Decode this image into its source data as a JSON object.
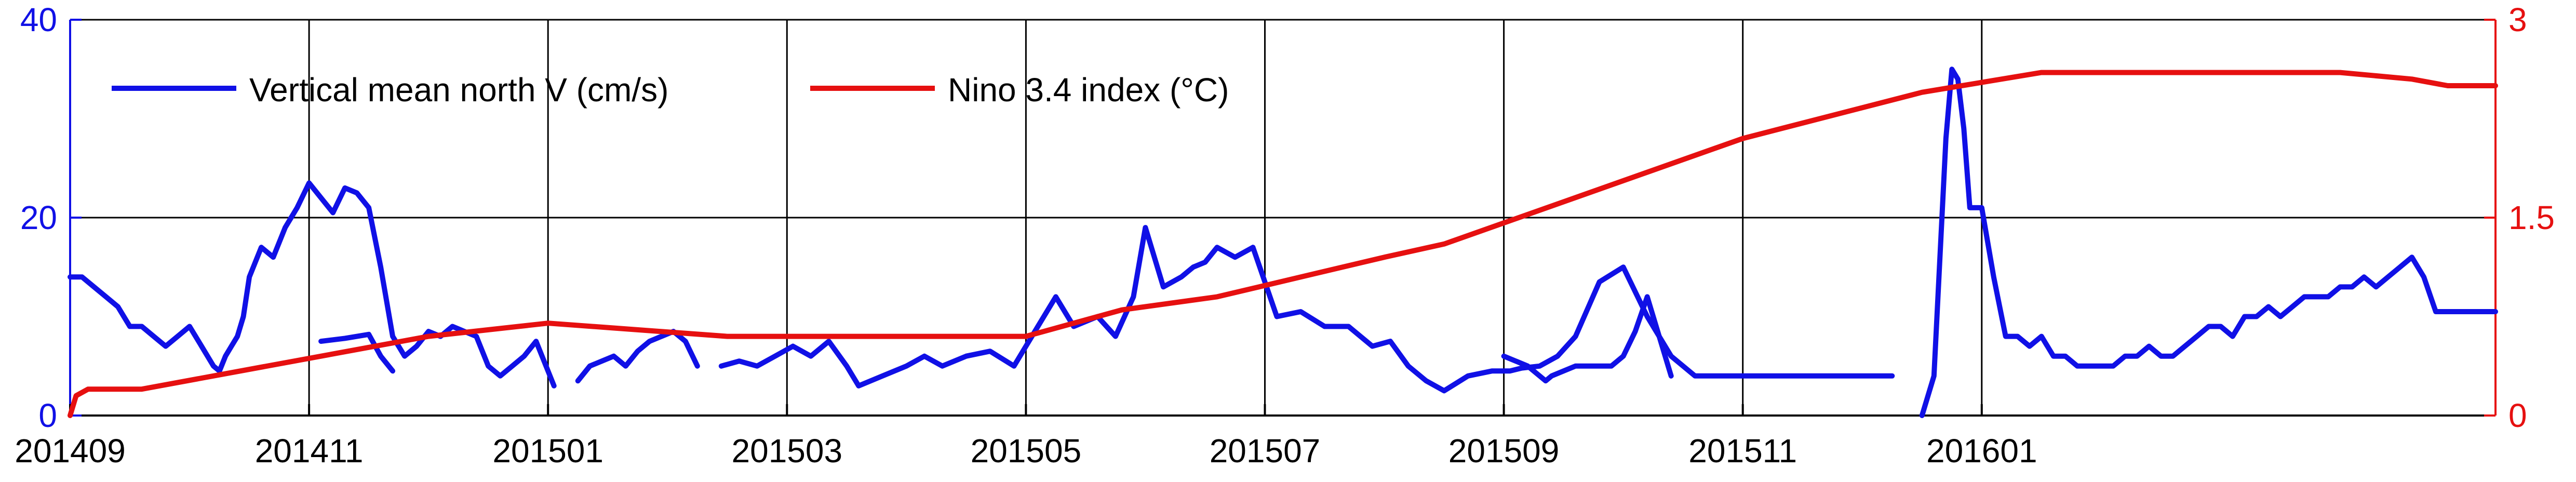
{
  "colors": {
    "series_v": "#1010e6",
    "series_nino": "#e61010",
    "axis_x": "#000000",
    "grid": "#000000"
  },
  "chart_data": {
    "type": "line",
    "x_ticks": [
      "201409",
      "201411",
      "201501",
      "201503",
      "201505",
      "201507",
      "201509",
      "201511",
      "201601"
    ],
    "xlim": [
      "201409",
      "201601+"
    ],
    "yleft": {
      "ticks": [
        "0",
        "20",
        "40"
      ],
      "ylim": [
        0,
        40
      ],
      "color": "#1010e6"
    },
    "yright": {
      "ticks": [
        "0",
        "1.5",
        "3"
      ],
      "ylim": [
        0,
        3
      ],
      "color": "#e61010"
    },
    "legend": {
      "placement": "top-left"
    },
    "series": [
      {
        "name": "Vertical mean north V (cm/s)",
        "axis": "left",
        "color": "#1010e6",
        "segments": [
          {
            "x": [
              0.0,
              0.1,
              0.2,
              0.3,
              0.4,
              0.5,
              0.6,
              0.7,
              0.8,
              0.9,
              1.0,
              1.1,
              1.2,
              1.25,
              1.3,
              1.35,
              1.4,
              1.45,
              1.5,
              1.6,
              1.7,
              1.8,
              1.9,
              2.0,
              2.1,
              2.2,
              2.3,
              2.4,
              2.5,
              2.6,
              2.7,
              2.8,
              2.9,
              3.0,
              3.1,
              3.2,
              3.3,
              3.4,
              3.5,
              3.6,
              3.7,
              3.8,
              3.9,
              4.0,
              4.05
            ],
            "y": [
              14,
              14,
              13,
              12,
              11,
              9,
              9,
              8,
              7,
              8,
              9,
              7,
              5,
              4.5,
              6,
              7,
              8,
              10,
              14,
              17,
              16,
              19,
              21,
              23.5,
              22,
              20.5,
              23,
              22.5,
              21,
              15,
              8,
              6,
              7,
              8.5,
              8,
              9,
              8.5,
              8,
              5,
              4,
              5,
              6,
              7.5,
              4.5,
              3
            ]
          },
          {
            "x": [
              2.1,
              2.3,
              2.5,
              2.6,
              2.7
            ],
            "y": [
              7.5,
              7.8,
              8.2,
              6,
              4.5
            ]
          },
          {
            "x": [
              4.25,
              4.35,
              4.45,
              4.55,
              4.65,
              4.75,
              4.85,
              4.95,
              5.05,
              5.15,
              5.25
            ],
            "y": [
              3.5,
              5,
              5.5,
              6,
              5,
              6.5,
              7.5,
              8,
              8.5,
              7.5,
              5
            ]
          },
          {
            "x": [
              5.45,
              5.6,
              5.75,
              5.9,
              6.05,
              6.2,
              6.35,
              6.5,
              6.6,
              6.8,
              7.0,
              7.15,
              7.3,
              7.5,
              7.7,
              7.9,
              8.0,
              8.1,
              8.25,
              8.4,
              8.6,
              8.75,
              8.9,
              9.0,
              9.15,
              9.3,
              9.4,
              9.5,
              9.6,
              9.75,
              9.9,
              10.1,
              10.3,
              10.5,
              10.7,
              10.9,
              11.05,
              11.2,
              11.35,
              11.5,
              11.7,
              11.9,
              12.05,
              12.15,
              12.3,
              12.45,
              12.6,
              12.8,
              13.0,
              13.2,
              13.4,
              13.6,
              13.8,
              14.0,
              14.2,
              14.4,
              14.55,
              14.7,
              14.85,
              15.0,
              15.25
            ],
            "y": [
              5,
              5.5,
              5,
              6,
              7,
              6,
              7.5,
              5,
              3,
              4,
              5,
              6,
              5,
              6,
              6.5,
              5,
              7,
              9,
              12,
              9,
              10,
              8,
              12,
              19,
              13,
              14,
              15,
              15.5,
              17,
              16,
              17,
              10,
              10.5,
              9,
              9,
              7,
              7.5,
              5,
              3.5,
              2.5,
              4,
              4.5,
              4.5,
              4.8,
              5,
              6,
              8,
              13.5,
              15,
              10,
              6,
              4,
              4,
              4,
              4,
              4,
              4,
              4,
              4,
              4,
              4
            ]
          },
          {
            "x": [
              12.0,
              12.1,
              12.2,
              12.3,
              12.35,
              12.4,
              12.5,
              12.6,
              12.8,
              12.9,
              13.0,
              13.1,
              13.2,
              13.3,
              13.4
            ],
            "y": [
              6,
              5.5,
              5,
              4,
              3.5,
              4,
              4.5,
              5,
              5,
              5,
              6,
              8.5,
              12,
              8,
              4
            ]
          },
          {
            "x": [
              15.5,
              15.6,
              15.7,
              15.75,
              15.8,
              15.85,
              15.9,
              16.0,
              16.1,
              16.2,
              16.3,
              16.4,
              16.5,
              16.6,
              16.7,
              16.8,
              16.9,
              17.0,
              17.1,
              17.2,
              17.3,
              17.4,
              17.5,
              17.6,
              17.7,
              17.8,
              17.9,
              18.0,
              18.1,
              18.2,
              18.3,
              18.4,
              18.5,
              18.6,
              18.7,
              18.8,
              18.9,
              19.0,
              19.1,
              19.2,
              19.3,
              19.4,
              19.5,
              19.6,
              19.7,
              19.8,
              19.9,
              20.0,
              20.1,
              20.2,
              20.3
            ],
            "y": [
              0,
              4,
              28,
              35,
              34,
              29,
              21,
              21,
              14,
              8,
              8,
              7,
              8,
              6,
              6,
              5,
              5,
              5,
              5,
              6,
              6,
              7,
              6,
              6,
              7,
              8,
              9,
              9,
              8,
              10,
              10,
              11,
              10,
              11,
              12,
              12,
              12,
              13,
              13,
              14,
              13,
              14,
              15,
              16,
              14,
              10.5,
              10.5,
              10.5,
              10.5,
              10.5,
              10.5
            ]
          }
        ]
      },
      {
        "name": "Nino 3.4 index (°C)",
        "axis": "right",
        "color": "#e61010",
        "x": [
          0.0,
          0.05,
          0.15,
          0.3,
          0.6,
          3.0,
          4.0,
          5.5,
          6.9,
          8.0,
          8.8,
          9.6,
          11.0,
          11.5,
          14.0,
          15.5,
          16.5,
          18.0,
          19.0,
          19.6,
          19.9,
          20.3
        ],
        "y": [
          0.0,
          0.15,
          0.2,
          0.2,
          0.2,
          0.6,
          0.7,
          0.6,
          0.6,
          0.6,
          0.8,
          0.9,
          1.2,
          1.3,
          2.1,
          2.45,
          2.6,
          2.6,
          2.6,
          2.55,
          2.5,
          2.5
        ]
      }
    ],
    "x_unit_note": ""
  }
}
